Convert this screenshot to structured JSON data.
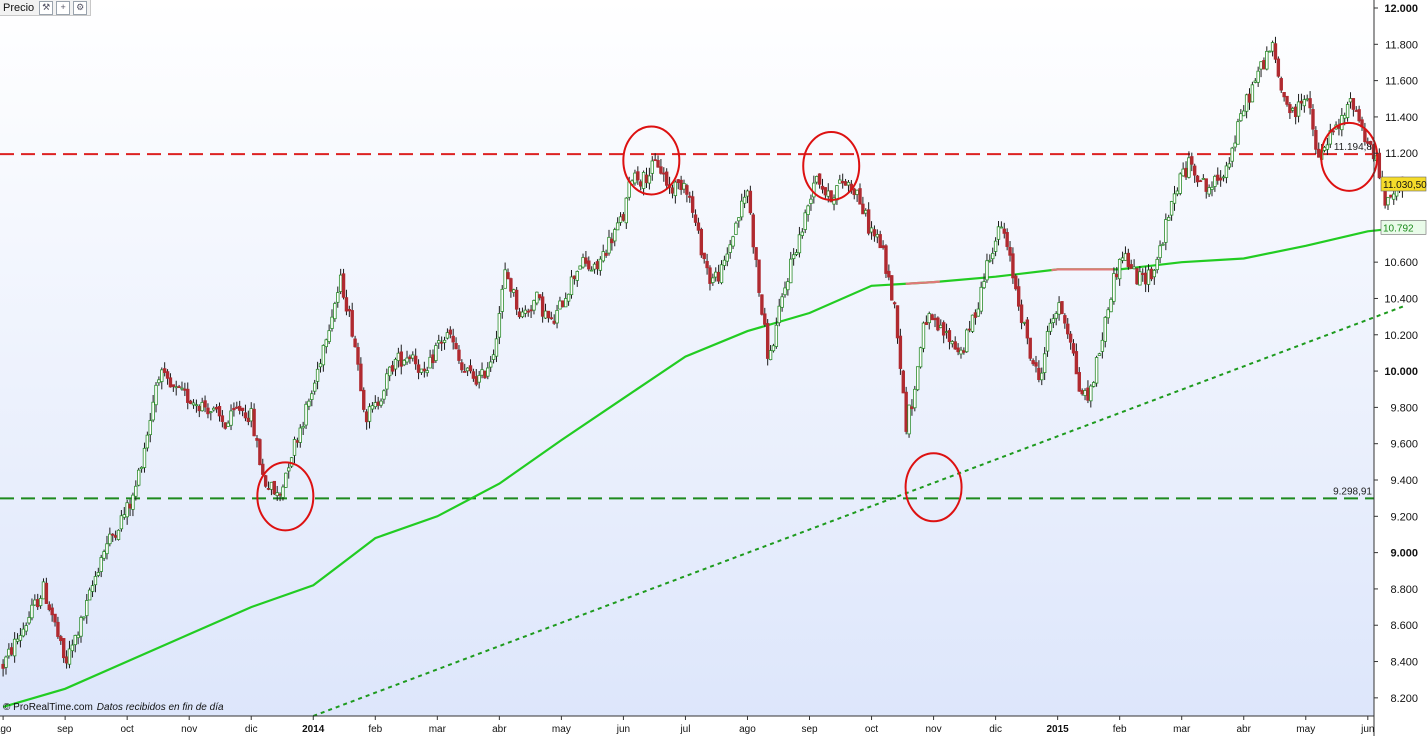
{
  "toolbar": {
    "title": "Precio",
    "icons": [
      "wrench-icon",
      "add-icon",
      "settings-icon"
    ]
  },
  "watermark": {
    "brand": "© ProRealTime.com",
    "note": "Datos recibidos en fin de día"
  },
  "colors": {
    "background_top": "#ffffff",
    "background_bottom": "#dde6fb",
    "candle_up": "#2b8c2b",
    "candle_down": "#b02a30",
    "sma_line": "#22cc22",
    "sma_line_red_segment": "#e07878",
    "resistance": "#dd2222",
    "support": "#1d8a1d",
    "trendline": "#1d9a1d",
    "circles": "#dd1111",
    "price_tag": "#f5dc2a",
    "sma_tag": "#2fcf2f"
  },
  "chart_data": {
    "type": "candlestick",
    "title": "",
    "xlabel": "",
    "ylabel": "",
    "ylim": [
      8100,
      12000
    ],
    "y_axis_side": "right",
    "y_ticks": [
      {
        "v": 12000,
        "label": "12.000",
        "bold": true
      },
      {
        "v": 11800,
        "label": "11.800"
      },
      {
        "v": 11600,
        "label": "11.600"
      },
      {
        "v": 11400,
        "label": "11.400"
      },
      {
        "v": 11200,
        "label": "11.200"
      },
      {
        "v": 10600,
        "label": "10.600"
      },
      {
        "v": 10400,
        "label": "10.400"
      },
      {
        "v": 10200,
        "label": "10.200"
      },
      {
        "v": 10000,
        "label": "10.000",
        "bold": true
      },
      {
        "v": 9800,
        "label": "9.800"
      },
      {
        "v": 9600,
        "label": "9.600"
      },
      {
        "v": 9400,
        "label": "9.400"
      },
      {
        "v": 9200,
        "label": "9.200"
      },
      {
        "v": 9000,
        "label": "9.000",
        "bold": true
      },
      {
        "v": 8800,
        "label": "8.800"
      },
      {
        "v": 8600,
        "label": "8.600"
      },
      {
        "v": 8400,
        "label": "8.400"
      },
      {
        "v": 8200,
        "label": "8.200"
      }
    ],
    "x_range_months": [
      -0.05,
      22.1
    ],
    "x_ticks": [
      {
        "m": 0,
        "label": "ago"
      },
      {
        "m": 1,
        "label": "sep"
      },
      {
        "m": 2,
        "label": "oct"
      },
      {
        "m": 3,
        "label": "nov"
      },
      {
        "m": 4,
        "label": "dic"
      },
      {
        "m": 5,
        "label": "2014",
        "bold": true
      },
      {
        "m": 6,
        "label": "feb"
      },
      {
        "m": 7,
        "label": "mar"
      },
      {
        "m": 8,
        "label": "abr"
      },
      {
        "m": 9,
        "label": "may"
      },
      {
        "m": 10,
        "label": "jun"
      },
      {
        "m": 11,
        "label": "jul"
      },
      {
        "m": 12,
        "label": "ago"
      },
      {
        "m": 13,
        "label": "sep"
      },
      {
        "m": 14,
        "label": "oct"
      },
      {
        "m": 15,
        "label": "nov"
      },
      {
        "m": 16,
        "label": "dic"
      },
      {
        "m": 17,
        "label": "2015",
        "bold": true
      },
      {
        "m": 18,
        "label": "feb"
      },
      {
        "m": 19,
        "label": "mar"
      },
      {
        "m": 20,
        "label": "abr"
      },
      {
        "m": 21,
        "label": "may"
      },
      {
        "m": 22,
        "label": "jun"
      }
    ],
    "price_path": [
      [
        0.0,
        8380
      ],
      [
        0.35,
        8600
      ],
      [
        0.65,
        8800
      ],
      [
        0.8,
        8650
      ],
      [
        1.0,
        8380
      ],
      [
        1.3,
        8650
      ],
      [
        1.6,
        9000
      ],
      [
        1.85,
        9150
      ],
      [
        2.1,
        9300
      ],
      [
        2.35,
        9700
      ],
      [
        2.5,
        10000
      ],
      [
        2.7,
        9900
      ],
      [
        3.0,
        9850
      ],
      [
        3.3,
        9800
      ],
      [
        3.6,
        9700
      ],
      [
        3.8,
        9800
      ],
      [
        4.0,
        9750
      ],
      [
        4.2,
        9400
      ],
      [
        4.45,
        9300
      ],
      [
        4.6,
        9500
      ],
      [
        4.8,
        9700
      ],
      [
        5.0,
        9900
      ],
      [
        5.2,
        10200
      ],
      [
        5.45,
        10500
      ],
      [
        5.65,
        10200
      ],
      [
        5.85,
        9750
      ],
      [
        6.0,
        9800
      ],
      [
        6.3,
        10050
      ],
      [
        6.6,
        10100
      ],
      [
        6.8,
        9950
      ],
      [
        7.0,
        10150
      ],
      [
        7.2,
        10200
      ],
      [
        7.4,
        10000
      ],
      [
        7.7,
        9950
      ],
      [
        7.9,
        10100
      ],
      [
        8.1,
        10550
      ],
      [
        8.35,
        10300
      ],
      [
        8.6,
        10400
      ],
      [
        8.85,
        10250
      ],
      [
        9.1,
        10450
      ],
      [
        9.3,
        10600
      ],
      [
        9.55,
        10550
      ],
      [
        9.75,
        10700
      ],
      [
        10.0,
        10850
      ],
      [
        10.15,
        11100
      ],
      [
        10.3,
        11050
      ],
      [
        10.55,
        11150
      ],
      [
        10.75,
        11000
      ],
      [
        11.0,
        11050
      ],
      [
        11.2,
        10750
      ],
      [
        11.4,
        10500
      ],
      [
        11.6,
        10550
      ],
      [
        11.8,
        10800
      ],
      [
        12.0,
        11000
      ],
      [
        12.2,
        10400
      ],
      [
        12.35,
        10050
      ],
      [
        12.5,
        10300
      ],
      [
        12.7,
        10600
      ],
      [
        12.9,
        10800
      ],
      [
        13.1,
        11100
      ],
      [
        13.3,
        10950
      ],
      [
        13.55,
        11050
      ],
      [
        13.75,
        11000
      ],
      [
        13.95,
        10800
      ],
      [
        14.15,
        10700
      ],
      [
        14.4,
        10300
      ],
      [
        14.55,
        9700
      ],
      [
        14.7,
        9900
      ],
      [
        14.85,
        10300
      ],
      [
        15.0,
        10250
      ],
      [
        15.2,
        10200
      ],
      [
        15.45,
        10100
      ],
      [
        15.7,
        10350
      ],
      [
        15.9,
        10650
      ],
      [
        16.1,
        10800
      ],
      [
        16.3,
        10500
      ],
      [
        16.55,
        10100
      ],
      [
        16.7,
        9950
      ],
      [
        16.9,
        10300
      ],
      [
        17.05,
        10350
      ],
      [
        17.2,
        10200
      ],
      [
        17.35,
        9900
      ],
      [
        17.5,
        9850
      ],
      [
        17.7,
        10150
      ],
      [
        17.9,
        10500
      ],
      [
        18.05,
        10650
      ],
      [
        18.3,
        10500
      ],
      [
        18.55,
        10550
      ],
      [
        18.75,
        10800
      ],
      [
        18.95,
        11050
      ],
      [
        19.15,
        11150
      ],
      [
        19.4,
        11000
      ],
      [
        19.6,
        11050
      ],
      [
        19.8,
        11200
      ],
      [
        20.0,
        11450
      ],
      [
        20.25,
        11650
      ],
      [
        20.45,
        11800
      ],
      [
        20.6,
        11550
      ],
      [
        20.8,
        11400
      ],
      [
        21.0,
        11550
      ],
      [
        21.2,
        11150
      ],
      [
        21.4,
        11300
      ],
      [
        21.55,
        11350
      ],
      [
        21.75,
        11500
      ],
      [
        21.95,
        11300
      ],
      [
        22.15,
        11150
      ],
      [
        22.3,
        10900
      ],
      [
        22.45,
        11000
      ],
      [
        22.55,
        11030
      ]
    ],
    "sma_path": [
      [
        0.0,
        8150
      ],
      [
        1.0,
        8250
      ],
      [
        2.0,
        8400
      ],
      [
        3.0,
        8550
      ],
      [
        4.0,
        8700
      ],
      [
        5.0,
        8820
      ],
      [
        5.5,
        8950
      ],
      [
        6.0,
        9080
      ],
      [
        7.0,
        9200
      ],
      [
        8.0,
        9380
      ],
      [
        9.0,
        9620
      ],
      [
        10.0,
        9850
      ],
      [
        11.0,
        10080
      ],
      [
        12.0,
        10220
      ],
      [
        13.0,
        10320
      ],
      [
        14.0,
        10470
      ],
      [
        15.0,
        10490
      ],
      [
        16.0,
        10520
      ],
      [
        17.0,
        10560
      ],
      [
        18.0,
        10560
      ],
      [
        19.0,
        10600
      ],
      [
        20.0,
        10620
      ],
      [
        21.0,
        10690
      ],
      [
        22.0,
        10770
      ],
      [
        22.6,
        10792
      ]
    ],
    "sma_red_segment_m": [
      14.55,
      15.1,
      16.9,
      17.9
    ],
    "reference_lines": [
      {
        "name": "resistance",
        "value": 11194.8,
        "label": "11.194,8"
      },
      {
        "name": "support",
        "value": 9298.91,
        "label": "9.298,91"
      }
    ],
    "trendline": {
      "from": [
        5.0,
        8100
      ],
      "to": [
        22.6,
        10360
      ]
    },
    "highlight_circles": [
      {
        "m": 4.55,
        "v": 9310
      },
      {
        "m": 10.45,
        "v": 11160
      },
      {
        "m": 13.35,
        "v": 11130
      },
      {
        "m": 15.0,
        "v": 9360
      },
      {
        "m": 21.7,
        "v": 11180
      }
    ],
    "last_price": {
      "value": 11030.5,
      "label": "11.030,50"
    },
    "sma_value": {
      "value": 10792,
      "label": "10.792"
    }
  }
}
